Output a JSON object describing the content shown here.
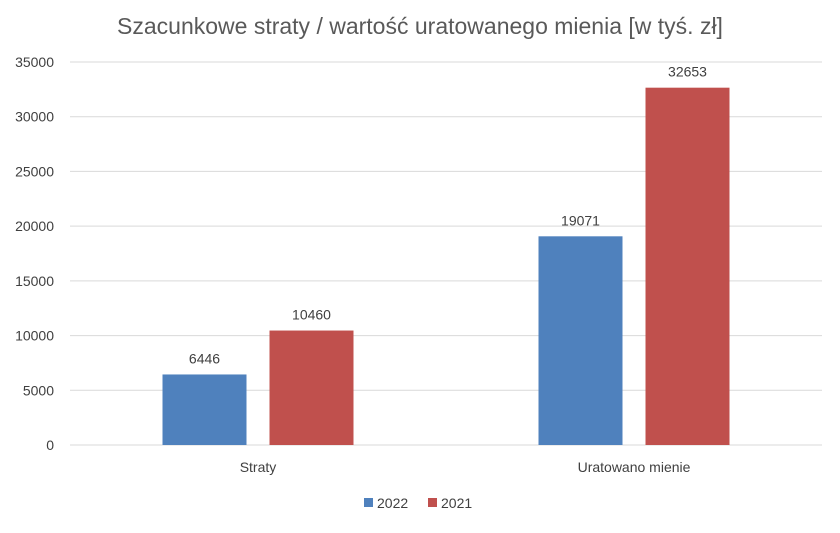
{
  "chart_data": {
    "type": "bar",
    "title": "Szacunkowe straty / wartość uratowanego mienia [w tyś. zł]",
    "categories": [
      "Straty",
      "Uratowano mienie"
    ],
    "series": [
      {
        "name": "2022",
        "values": [
          6446,
          19071
        ],
        "color": "#4F81BD"
      },
      {
        "name": "2021",
        "values": [
          10460,
          32653
        ],
        "color": "#C0504D"
      }
    ],
    "ylim": [
      0,
      35000
    ],
    "yticks": [
      0,
      5000,
      10000,
      15000,
      20000,
      25000,
      30000,
      35000
    ],
    "grid": true,
    "data_labels": true,
    "legend_position": "bottom"
  }
}
